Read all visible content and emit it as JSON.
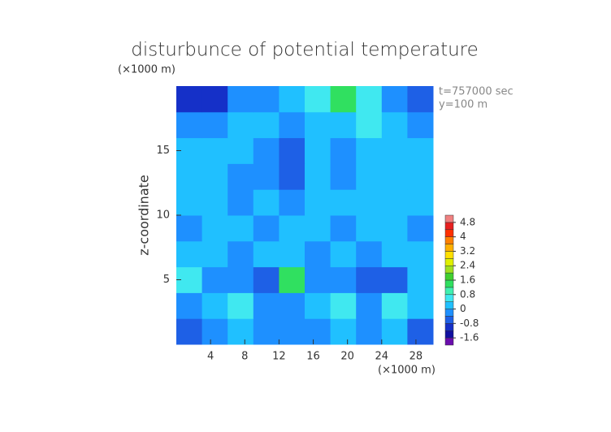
{
  "chart_data": {
    "type": "heatmap",
    "title": "disturbunce of potential temperature",
    "y_unit_label": "(×1000 m)",
    "x_unit_label": "(×1000 m)",
    "ylabel": "z-coordinate",
    "annotations": [
      "t=757000 sec",
      "y=100 m"
    ],
    "xlim": [
      0,
      30
    ],
    "xticks": [
      4,
      8,
      12,
      16,
      20,
      24,
      28
    ],
    "ylim": [
      0,
      20
    ],
    "yticks": [
      5,
      10,
      15
    ],
    "x": [
      1.5,
      4.5,
      7.5,
      10.5,
      13.5,
      16.5,
      19.5,
      22.5,
      25.5,
      28.5
    ],
    "y": [
      1,
      3,
      5,
      7,
      9,
      11,
      13,
      15,
      17,
      19
    ],
    "z": [
      [
        -0.6,
        -0.2,
        0.2,
        -0.4,
        -0.2,
        -0.4,
        0,
        -0.4,
        0,
        -0.6
      ],
      [
        -0.4,
        0,
        0.4,
        -0.4,
        -0.2,
        0,
        0.4,
        -0.2,
        0.6,
        0
      ],
      [
        0.4,
        -0.2,
        -0.4,
        -0.8,
        1.2,
        -0.2,
        -0.4,
        -0.8,
        -0.6,
        0
      ],
      [
        0.2,
        0,
        -0.2,
        0,
        0,
        -0.2,
        0.2,
        -0.4,
        0,
        0.2
      ],
      [
        -0.2,
        0,
        0.2,
        -0.2,
        0,
        0.2,
        -0.2,
        0,
        0,
        -0.2
      ],
      [
        0,
        0.2,
        -0.2,
        0,
        -0.4,
        0,
        0.2,
        0,
        0.2,
        0
      ],
      [
        0.2,
        0,
        -0.2,
        -0.4,
        -0.6,
        0.2,
        -0.2,
        0,
        0,
        0.2
      ],
      [
        0,
        0.2,
        0,
        -0.2,
        -0.6,
        0,
        -0.2,
        0,
        0.2,
        0
      ],
      [
        -0.4,
        -0.2,
        0,
        0.2,
        -0.4,
        0,
        0.2,
        0.4,
        0,
        -0.4
      ],
      [
        -1.2,
        -1.0,
        -0.4,
        -0.2,
        0,
        0.4,
        1.2,
        0.6,
        -0.2,
        -0.8
      ]
    ],
    "colorbar": {
      "levels": [
        -2.0,
        -1.6,
        -1.2,
        -0.8,
        -0.4,
        0,
        0.4,
        0.8,
        1.2,
        1.6,
        2.0,
        2.4,
        2.8,
        3.2,
        3.6,
        4.0,
        4.4,
        4.8,
        5.2
      ],
      "colors": [
        "#6a0dad",
        "#1010a0",
        "#1530c8",
        "#1e60e6",
        "#1e90ff",
        "#20c0ff",
        "#40e8f0",
        "#40f0b0",
        "#30e060",
        "#40d030",
        "#a0e020",
        "#e0f000",
        "#ffe000",
        "#ffb000",
        "#ff8000",
        "#ff3000",
        "#e82020",
        "#f08080"
      ],
      "ticks": [
        -1.6,
        -0.8,
        0,
        0.8,
        1.6,
        2.4,
        3.2,
        4,
        4.8
      ]
    }
  }
}
